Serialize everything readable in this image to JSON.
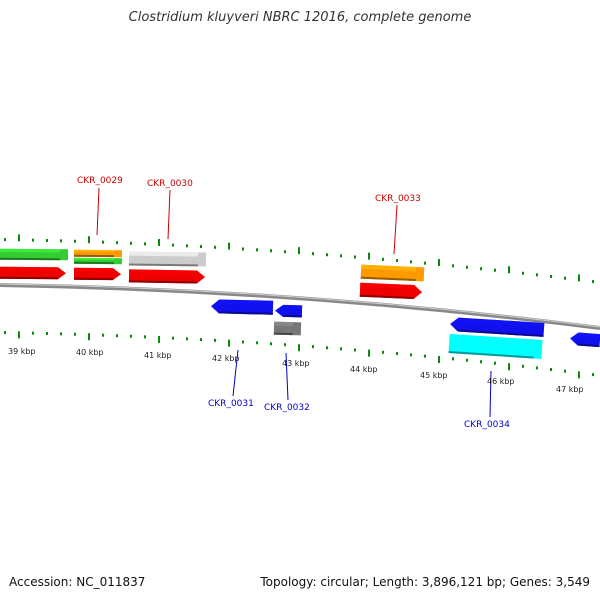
{
  "title": "Clostridium kluyveri NBRC 12016, complete genome",
  "footer": {
    "accession": "Accession: NC_011837",
    "summary": "Topology: circular; Length: 3,896,121 bp; Genes: 3,549"
  },
  "colors": {
    "backbone": "#888888",
    "tick": "#0a8a0a",
    "plus_label": "#cc0000",
    "minus_label": "#0000cc",
    "red": "#ee0000",
    "green": "#33cc33",
    "orange": "#ff9900",
    "gray": "#cccccc",
    "dark_gray": "#777777",
    "blue": "#1010ee",
    "cyan": "#00ffff"
  },
  "scale_labels": [
    "39 kbp",
    "40 kbp",
    "41 kbp",
    "42 kbp",
    "43 kbp",
    "44 kbp",
    "45 kbp",
    "46 kbp",
    "47 kbp"
  ],
  "gene_labels": {
    "plus": [
      "CKR_0029",
      "CKR_0030",
      "CKR_0033"
    ],
    "minus": [
      "CKR_0031",
      "CKR_0032",
      "CKR_0034"
    ]
  },
  "features": [
    {
      "name": "green-feature-1",
      "color": "green",
      "strand": "plus"
    },
    {
      "name": "red-feature-1",
      "color": "red",
      "strand": "plus"
    },
    {
      "name": "orange-feature-0029",
      "color": "orange",
      "strand": "plus"
    },
    {
      "name": "green-feature-0029",
      "color": "green",
      "strand": "plus"
    },
    {
      "name": "red-feature-0029",
      "color": "red",
      "strand": "plus"
    },
    {
      "name": "gray-feature-0030",
      "color": "gray",
      "strand": "plus"
    },
    {
      "name": "red-feature-0030",
      "color": "red",
      "strand": "plus"
    },
    {
      "name": "orange-feature-0033",
      "color": "orange",
      "strand": "plus"
    },
    {
      "name": "red-feature-0033",
      "color": "red",
      "strand": "plus"
    },
    {
      "name": "blue-feature-0031",
      "color": "blue",
      "strand": "minus"
    },
    {
      "name": "blue-feature-0032",
      "color": "blue",
      "strand": "minus"
    },
    {
      "name": "darkgray-feature-0032",
      "color": "dark_gray",
      "strand": "minus"
    },
    {
      "name": "blue-feature-0034",
      "color": "blue",
      "strand": "minus"
    },
    {
      "name": "cyan-feature-0034",
      "color": "cyan",
      "strand": "minus"
    },
    {
      "name": "blue-feature-edge",
      "color": "blue",
      "strand": "minus"
    }
  ]
}
